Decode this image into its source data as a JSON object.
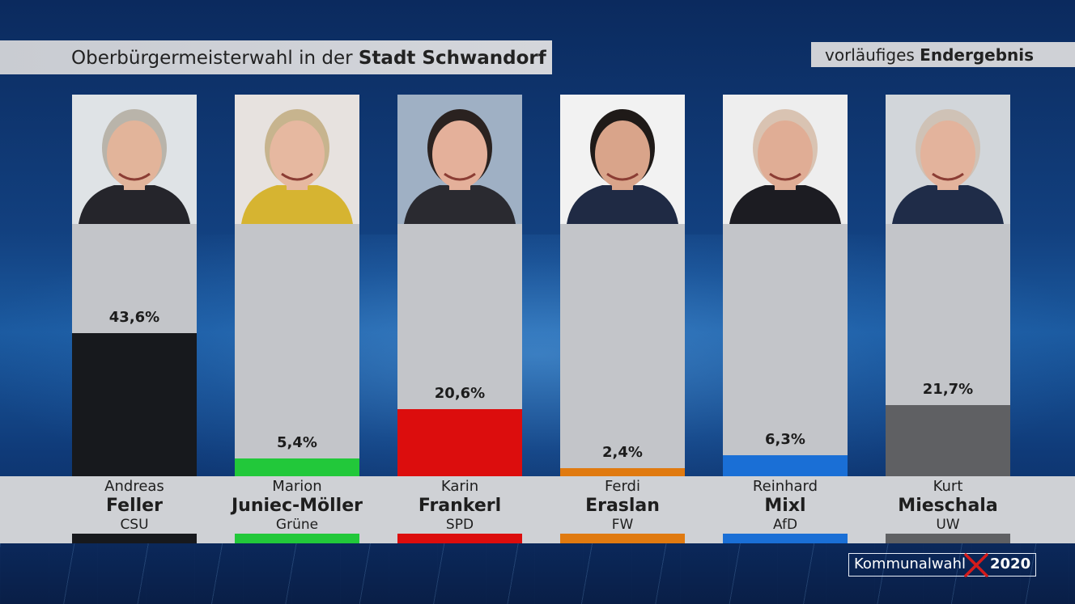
{
  "header": {
    "title_prefix": "Oberbürgermeisterwahl in der ",
    "title_bold": "Stadt Schwandorf",
    "status_prefix": "vorläufiges ",
    "status_bold": "Endergebnis"
  },
  "chart_data": {
    "type": "bar",
    "categories": [
      "Andreas Feller",
      "Marion Juniec-Möller",
      "Karin Frankerl",
      "Ferdi Eraslan",
      "Reinhard Mixl",
      "Kurt Mieschala"
    ],
    "values": [
      43.6,
      5.4,
      20.6,
      2.4,
      6.3,
      21.7
    ],
    "ylim": [
      0,
      77
    ],
    "grid": false,
    "candidates": [
      {
        "first": "Andreas",
        "last": "Feller",
        "party": "CSU",
        "value": 43.6,
        "label": "43,6%",
        "color": "#17191d"
      },
      {
        "first": "Marion",
        "last": "Juniec-Möller",
        "party": "Grüne",
        "value": 5.4,
        "label": "5,4%",
        "color": "#22c83a"
      },
      {
        "first": "Karin",
        "last": "Frankerl",
        "party": "SPD",
        "value": 20.6,
        "label": "20,6%",
        "color": "#dc0d0d"
      },
      {
        "first": "Ferdi",
        "last": "Eraslan",
        "party": "FW",
        "value": 2.4,
        "label": "2,4%",
        "color": "#e07a10"
      },
      {
        "first": "Reinhard",
        "last": "Mixl",
        "party": "AfD",
        "value": 6.3,
        "label": "6,3%",
        "color": "#1a6fd6"
      },
      {
        "first": "Kurt",
        "last": "Mieschala",
        "party": "UW",
        "value": 21.7,
        "label": "21,7%",
        "color": "#5f6063"
      }
    ]
  },
  "logo": {
    "word": "Kommunalwahl",
    "year": "2020",
    "cross_color": "#d41b1b"
  },
  "icons": {
    "photo": "candidate-portrait-icon",
    "ballot": "ballot-cross-icon"
  }
}
